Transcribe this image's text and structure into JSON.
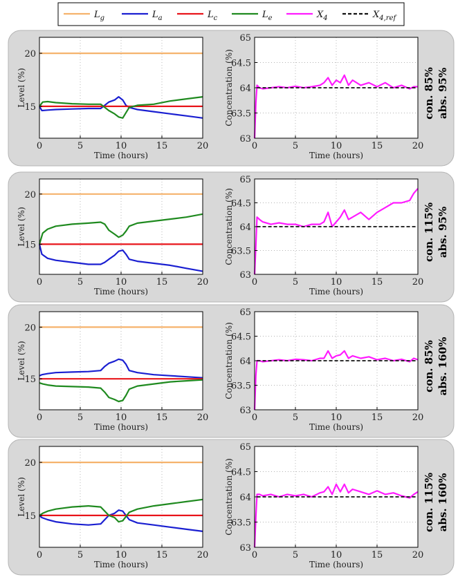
{
  "legend": {
    "entries": [
      {
        "name": "L",
        "sub": "g",
        "color": "#f5b26b",
        "dash": false
      },
      {
        "name": "L",
        "sub": "a",
        "color": "#1a1fd1",
        "dash": false
      },
      {
        "name": "L",
        "sub": "c",
        "color": "#e8141a",
        "dash": false
      },
      {
        "name": "L",
        "sub": "e",
        "color": "#1f8a1f",
        "dash": false
      },
      {
        "name": "X",
        "sub": "4",
        "color": "#ff1aff",
        "dash": false
      },
      {
        "name": "X",
        "sub": "4,ref",
        "color": "#111111",
        "dash": true
      }
    ]
  },
  "chart_data": [
    {
      "type": "line",
      "condition": {
        "line1": "con. 85%",
        "line2": "abs. 95%"
      },
      "level": {
        "xlabel": "Time (hours)",
        "ylabel": "Level (%)",
        "xlim": [
          0,
          20
        ],
        "ylim": [
          12,
          21.5
        ],
        "xticks": [
          0,
          5,
          10,
          15,
          20
        ],
        "yticks": [
          15,
          20
        ],
        "grid": true,
        "series": [
          {
            "key": "Lg",
            "color": "#f5b26b",
            "x": [
              0,
              20
            ],
            "y": [
              20,
              20
            ]
          },
          {
            "key": "La",
            "color": "#1a1fd1",
            "x": [
              0,
              0.3,
              1,
              2,
              4,
              6,
              7.5,
              8,
              8.5,
              9.2,
              9.7,
              10.2,
              10.6,
              11,
              12,
              14,
              16,
              18,
              20
            ],
            "y": [
              15,
              14.6,
              14.65,
              14.7,
              14.75,
              14.8,
              14.8,
              15.1,
              15.4,
              15.6,
              15.9,
              15.6,
              15.1,
              14.9,
              14.7,
              14.5,
              14.3,
              14.1,
              13.9
            ]
          },
          {
            "key": "Lc",
            "color": "#e8141a",
            "x": [
              0,
              20
            ],
            "y": [
              15,
              15
            ]
          },
          {
            "key": "Le",
            "color": "#1f8a1f",
            "x": [
              0,
              0.4,
              1,
              2,
              4,
              6,
              7.5,
              8,
              8.5,
              9.2,
              9.7,
              10.2,
              10.6,
              11,
              12,
              14,
              16,
              18,
              20
            ],
            "y": [
              15,
              15.4,
              15.45,
              15.35,
              15.25,
              15.2,
              15.2,
              14.9,
              14.6,
              14.3,
              14.0,
              13.9,
              14.4,
              14.9,
              15.1,
              15.2,
              15.5,
              15.7,
              15.9
            ]
          }
        ]
      },
      "concentration": {
        "xlabel": "Time (hours)",
        "ylabel": "Concentration (%)",
        "xlim": [
          0,
          20
        ],
        "ylim": [
          63,
          65
        ],
        "xticks": [
          0,
          5,
          10,
          15,
          20
        ],
        "yticks": [
          63,
          63.5,
          64,
          64.5,
          65
        ],
        "yticklabels": [
          "63",
          "63.5",
          "64",
          "64.5",
          "65"
        ],
        "grid": true,
        "series": [
          {
            "key": "X4",
            "color": "#ff1aff",
            "x": [
              0,
              0.15,
              0.3,
              0.6,
              1,
              2,
              3,
              4,
              5,
              6,
              7,
              8,
              8.5,
              9,
              9.5,
              10,
              10.5,
              11,
              11.5,
              12,
              13,
              14,
              15,
              16,
              17,
              18,
              19,
              19.5,
              20
            ],
            "y": [
              63,
              63.7,
              64.05,
              64,
              63.98,
              64.0,
              64.02,
              64.0,
              64.03,
              64.0,
              64.02,
              64.05,
              64.1,
              64.2,
              64.05,
              64.15,
              64.1,
              64.25,
              64.05,
              64.15,
              64.05,
              64.1,
              64.02,
              64.1,
              64.0,
              64.05,
              63.98,
              64.02,
              64.02
            ]
          },
          {
            "key": "X4ref",
            "color": "#111111",
            "dash": true,
            "x": [
              0.3,
              20
            ],
            "y": [
              64,
              64
            ]
          }
        ]
      }
    },
    {
      "type": "line",
      "condition": {
        "line1": "con. 115%",
        "line2": "abs. 95%"
      },
      "level": {
        "xlabel": "Time (hours)",
        "ylabel": "Level (%)",
        "xlim": [
          0,
          20
        ],
        "ylim": [
          12,
          21.5
        ],
        "xticks": [
          0,
          5,
          10,
          15,
          20
        ],
        "yticks": [
          15,
          20
        ],
        "grid": true,
        "series": [
          {
            "key": "Lg",
            "color": "#f5b26b",
            "x": [
              0,
              20
            ],
            "y": [
              20,
              20
            ]
          },
          {
            "key": "La",
            "color": "#1a1fd1",
            "x": [
              0,
              0.3,
              1,
              2,
              4,
              6,
              7.5,
              8,
              8.5,
              9.2,
              9.7,
              10.2,
              10.6,
              11,
              12,
              14,
              16,
              18,
              20
            ],
            "y": [
              15,
              14.0,
              13.6,
              13.4,
              13.2,
              13.0,
              13.0,
              13.2,
              13.5,
              13.9,
              14.3,
              14.4,
              14.0,
              13.5,
              13.3,
              13.1,
              12.9,
              12.6,
              12.3
            ]
          },
          {
            "key": "Lc",
            "color": "#e8141a",
            "x": [
              0,
              20
            ],
            "y": [
              15,
              15
            ]
          },
          {
            "key": "Le",
            "color": "#1f8a1f",
            "x": [
              0,
              0.4,
              1,
              2,
              4,
              6,
              7.5,
              8,
              8.5,
              9.2,
              9.7,
              10.2,
              10.6,
              11,
              12,
              14,
              16,
              18,
              20
            ],
            "y": [
              15,
              16.1,
              16.5,
              16.8,
              17.0,
              17.1,
              17.2,
              17.0,
              16.4,
              16.0,
              15.7,
              15.9,
              16.3,
              16.8,
              17.1,
              17.3,
              17.5,
              17.7,
              18.0
            ]
          }
        ]
      },
      "concentration": {
        "xlabel": "Time (hours)",
        "ylabel": "Concentration (%)",
        "xlim": [
          0,
          20
        ],
        "ylim": [
          63,
          65
        ],
        "xticks": [
          0,
          5,
          10,
          15,
          20
        ],
        "yticks": [
          63,
          63.5,
          64,
          64.5,
          65
        ],
        "yticklabels": [
          "63",
          "63.5",
          "64",
          "64.5",
          "65"
        ],
        "grid": true,
        "series": [
          {
            "key": "X4",
            "color": "#ff1aff",
            "x": [
              0,
              0.15,
              0.3,
              0.6,
              1,
              2,
              3,
              4,
              5,
              6,
              7,
              8,
              8.5,
              9,
              9.5,
              10,
              10.5,
              11,
              11.5,
              12,
              13,
              14,
              15,
              16,
              17,
              18,
              19,
              19.5,
              20
            ],
            "y": [
              63,
              63.6,
              64.2,
              64.15,
              64.1,
              64.05,
              64.08,
              64.05,
              64.05,
              64.0,
              64.05,
              64.05,
              64.1,
              64.3,
              64.0,
              64.1,
              64.2,
              64.35,
              64.15,
              64.2,
              64.3,
              64.15,
              64.3,
              64.4,
              64.5,
              64.5,
              64.55,
              64.7,
              64.8
            ]
          },
          {
            "key": "X4ref",
            "color": "#111111",
            "dash": true,
            "x": [
              0.3,
              20
            ],
            "y": [
              64,
              64
            ]
          }
        ]
      }
    },
    {
      "type": "line",
      "condition": {
        "line1": "con. 85%",
        "line2": "abs. 160%"
      },
      "level": {
        "xlabel": "Time (hours)",
        "ylabel": "Level (%)",
        "xlim": [
          0,
          20
        ],
        "ylim": [
          12,
          21.5
        ],
        "xticks": [
          0,
          5,
          10,
          15,
          20
        ],
        "yticks": [
          15,
          20
        ],
        "grid": true,
        "series": [
          {
            "key": "Lg",
            "color": "#f5b26b",
            "x": [
              0,
              20
            ],
            "y": [
              20,
              20
            ]
          },
          {
            "key": "La",
            "color": "#1a1fd1",
            "x": [
              0,
              0.3,
              1,
              2,
              4,
              6,
              7.5,
              8,
              8.5,
              9.2,
              9.7,
              10.2,
              10.6,
              11,
              12,
              14,
              16,
              18,
              20
            ],
            "y": [
              15.3,
              15.4,
              15.5,
              15.6,
              15.65,
              15.7,
              15.8,
              16.2,
              16.5,
              16.7,
              16.9,
              16.8,
              16.4,
              15.8,
              15.6,
              15.4,
              15.3,
              15.2,
              15.1
            ]
          },
          {
            "key": "Lc",
            "color": "#e8141a",
            "x": [
              0,
              20
            ],
            "y": [
              15,
              15
            ]
          },
          {
            "key": "Le",
            "color": "#1f8a1f",
            "x": [
              0,
              0.4,
              1,
              2,
              4,
              6,
              7.5,
              8,
              8.5,
              9.2,
              9.7,
              10.2,
              10.6,
              11,
              12,
              14,
              16,
              18,
              20
            ],
            "y": [
              14.6,
              14.5,
              14.4,
              14.3,
              14.25,
              14.2,
              14.1,
              13.7,
              13.2,
              13.0,
              12.8,
              12.9,
              13.4,
              14.0,
              14.3,
              14.5,
              14.7,
              14.8,
              14.9
            ]
          }
        ]
      },
      "concentration": {
        "xlabel": "Time (hours)",
        "ylabel": "Concentration (%)",
        "xlim": [
          0,
          20
        ],
        "ylim": [
          63,
          65
        ],
        "xticks": [
          0,
          5,
          10,
          15,
          20
        ],
        "yticks": [
          63,
          63.5,
          64,
          64.5,
          65
        ],
        "yticklabels": [
          "63",
          "63.5",
          "64",
          "64.5",
          "65"
        ],
        "grid": true,
        "series": [
          {
            "key": "X4",
            "color": "#ff1aff",
            "x": [
              0,
              0.15,
              0.3,
              0.6,
              1,
              2,
              3,
              4,
              5,
              6,
              7,
              8,
              8.5,
              9,
              9.5,
              10,
              10.5,
              11,
              11.5,
              12,
              13,
              14,
              15,
              16,
              17,
              18,
              19,
              19.5,
              20
            ],
            "y": [
              63,
              63.7,
              64.0,
              64.0,
              63.98,
              64.0,
              64.02,
              64.0,
              64.03,
              64.02,
              64.0,
              64.05,
              64.05,
              64.2,
              64.05,
              64.1,
              64.12,
              64.2,
              64.05,
              64.1,
              64.05,
              64.08,
              64.02,
              64.05,
              64.0,
              64.03,
              63.98,
              64.05,
              64.02
            ]
          },
          {
            "key": "X4ref",
            "color": "#111111",
            "dash": true,
            "x": [
              0.3,
              20
            ],
            "y": [
              64,
              64
            ]
          }
        ]
      }
    },
    {
      "type": "line",
      "condition": {
        "line1": "con. 115%",
        "line2": "abs. 160%"
      },
      "level": {
        "xlabel": "Time (hours)",
        "ylabel": "Level (%)",
        "xlim": [
          0,
          20
        ],
        "ylim": [
          12,
          21.5
        ],
        "xticks": [
          0,
          5,
          10,
          15,
          20
        ],
        "yticks": [
          15,
          20
        ],
        "grid": true,
        "series": [
          {
            "key": "Lg",
            "color": "#f5b26b",
            "x": [
              0,
              20
            ],
            "y": [
              20,
              20
            ]
          },
          {
            "key": "La",
            "color": "#1a1fd1",
            "x": [
              0,
              0.3,
              1,
              2,
              4,
              6,
              7.5,
              8,
              8.5,
              9.2,
              9.7,
              10.2,
              10.6,
              11,
              12,
              14,
              16,
              18,
              20
            ],
            "y": [
              15,
              14.8,
              14.6,
              14.4,
              14.2,
              14.1,
              14.2,
              14.6,
              15.0,
              15.2,
              15.5,
              15.4,
              15.0,
              14.6,
              14.3,
              14.1,
              13.9,
              13.7,
              13.5
            ]
          },
          {
            "key": "Lc",
            "color": "#e8141a",
            "x": [
              0,
              20
            ],
            "y": [
              15,
              15
            ]
          },
          {
            "key": "Le",
            "color": "#1f8a1f",
            "x": [
              0,
              0.4,
              1,
              2,
              4,
              6,
              7.5,
              8,
              8.5,
              9.2,
              9.7,
              10.2,
              10.6,
              11,
              12,
              14,
              16,
              18,
              20
            ],
            "y": [
              15,
              15.2,
              15.4,
              15.6,
              15.8,
              15.9,
              15.8,
              15.4,
              15.0,
              14.8,
              14.4,
              14.5,
              14.9,
              15.3,
              15.6,
              15.9,
              16.1,
              16.3,
              16.5
            ]
          }
        ]
      },
      "concentration": {
        "xlabel": "Time (hours)",
        "ylabel": "Concentration (%)",
        "xlim": [
          0,
          20
        ],
        "ylim": [
          63,
          65
        ],
        "xticks": [
          0,
          5,
          10,
          15,
          20
        ],
        "yticks": [
          63,
          63.5,
          64,
          64.5,
          65
        ],
        "yticklabels": [
          "63",
          "63.5",
          "64",
          "64.5",
          "65"
        ],
        "grid": true,
        "series": [
          {
            "key": "X4",
            "color": "#ff1aff",
            "x": [
              0,
              0.15,
              0.3,
              0.6,
              1,
              2,
              3,
              4,
              5,
              6,
              7,
              8,
              8.5,
              9,
              9.5,
              10,
              10.5,
              11,
              11.5,
              12,
              13,
              14,
              15,
              16,
              17,
              18,
              19,
              19.5,
              20
            ],
            "y": [
              63,
              63.6,
              64.05,
              64.05,
              64.02,
              64.05,
              64.0,
              64.05,
              64.02,
              64.05,
              64.0,
              64.08,
              64.1,
              64.2,
              64.05,
              64.25,
              64.1,
              64.25,
              64.08,
              64.15,
              64.1,
              64.05,
              64.12,
              64.05,
              64.08,
              64.02,
              63.98,
              64.05,
              64.1
            ]
          },
          {
            "key": "X4ref",
            "color": "#111111",
            "dash": true,
            "x": [
              0.3,
              20
            ],
            "y": [
              64,
              64
            ]
          }
        ]
      }
    }
  ]
}
